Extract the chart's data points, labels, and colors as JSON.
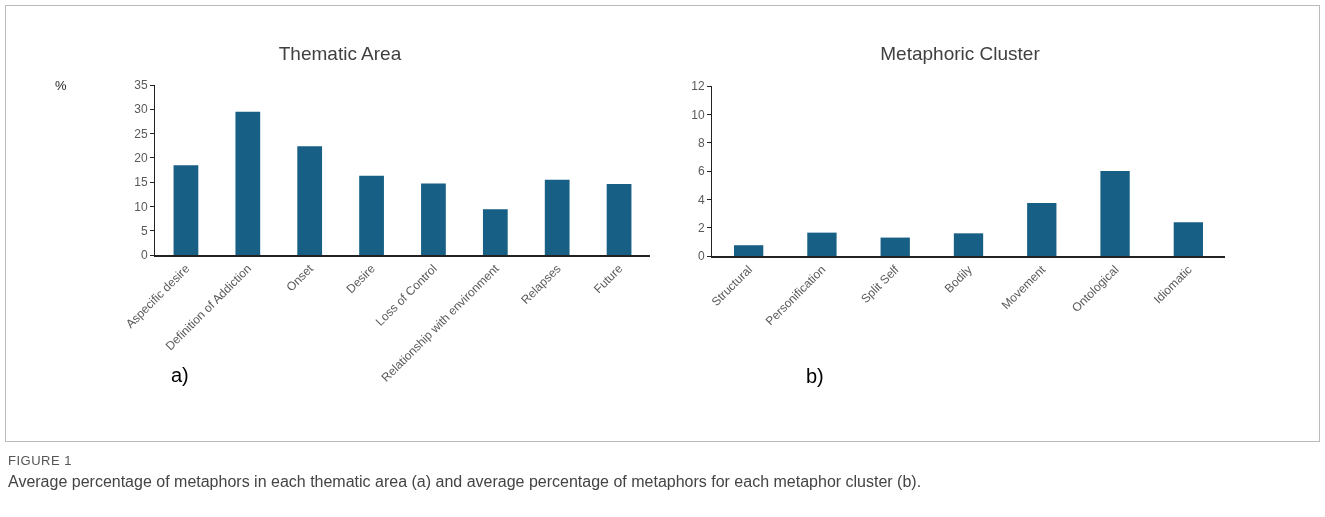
{
  "chart_data": [
    {
      "type": "bar",
      "title": "Thematic Area",
      "ylabel": "%",
      "categories": [
        "Aspecific desire",
        "Definition of Addiction",
        "Onset",
        "Desire",
        "Loss of Control",
        "Relationship with environment",
        "Relapses",
        "Future"
      ],
      "values": [
        18.5,
        29.5,
        22.4,
        16.3,
        14.7,
        9.4,
        15.5,
        14.6
      ],
      "color": "#175f84",
      "ylim": [
        0,
        35
      ],
      "yticks": [
        0,
        5,
        10,
        15,
        20,
        25,
        30,
        35
      ],
      "annotations": [
        "a)"
      ]
    },
    {
      "type": "bar",
      "title": "Metaphoric Cluster",
      "categories": [
        "Structural",
        "Personification",
        "Split Self",
        "Bodily",
        "Movement",
        "Ontological",
        "Idiomatic"
      ],
      "values": [
        0.76,
        1.65,
        1.3,
        1.6,
        3.75,
        6.0,
        2.38
      ],
      "color": "#175f84",
      "ylim": [
        0,
        12
      ],
      "yticks": [
        0,
        2,
        4,
        6,
        8,
        10,
        12
      ],
      "annotations": [
        "b)",
        "FIGURE 1",
        "Average percentage of metaphors in each thematic area (a) and average percentage of metaphors for each metaphor cluster (b)."
      ]
    }
  ]
}
